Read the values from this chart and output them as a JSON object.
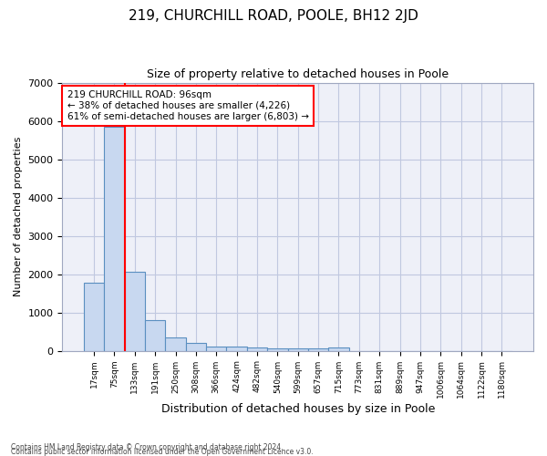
{
  "title": "219, CHURCHILL ROAD, POOLE, BH12 2JD",
  "subtitle": "Size of property relative to detached houses in Poole",
  "xlabel": "Distribution of detached houses by size in Poole",
  "ylabel": "Number of detached properties",
  "categories": [
    "17sqm",
    "75sqm",
    "133sqm",
    "191sqm",
    "250sqm",
    "308sqm",
    "366sqm",
    "424sqm",
    "482sqm",
    "540sqm",
    "599sqm",
    "657sqm",
    "715sqm",
    "773sqm",
    "831sqm",
    "889sqm",
    "947sqm",
    "1006sqm",
    "1064sqm",
    "1122sqm",
    "1180sqm"
  ],
  "values": [
    1780,
    5850,
    2070,
    800,
    350,
    200,
    105,
    100,
    80,
    65,
    55,
    50,
    90,
    0,
    0,
    0,
    0,
    0,
    0,
    0,
    0
  ],
  "bar_color": "#c8d8f0",
  "bar_edge_color": "#5a8fc0",
  "red_line_x": 1.5,
  "property_sqm": 96,
  "annotation_text": "219 CHURCHILL ROAD: 96sqm\n← 38% of detached houses are smaller (4,226)\n61% of semi-detached houses are larger (6,803) →",
  "annotation_box_color": "white",
  "annotation_box_edge_color": "red",
  "ylim": [
    0,
    7000
  ],
  "grid_color": "#c0c8e0",
  "background_color": "#eef0f8",
  "footnote1": "Contains HM Land Registry data © Crown copyright and database right 2024.",
  "footnote2": "Contains public sector information licensed under the Open Government Licence v3.0."
}
